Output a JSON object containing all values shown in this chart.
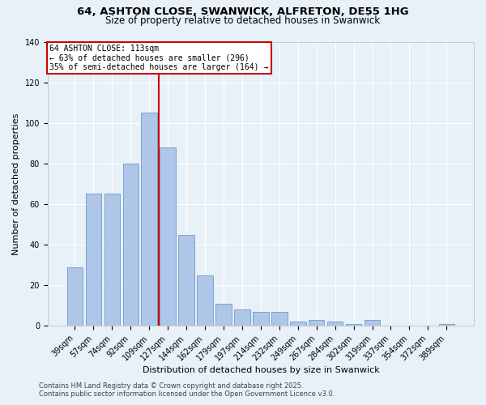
{
  "title": "64, ASHTON CLOSE, SWANWICK, ALFRETON, DE55 1HG",
  "subtitle": "Size of property relative to detached houses in Swanwick",
  "xlabel": "Distribution of detached houses by size in Swanwick",
  "ylabel": "Number of detached properties",
  "categories": [
    "39sqm",
    "57sqm",
    "74sqm",
    "92sqm",
    "109sqm",
    "127sqm",
    "144sqm",
    "162sqm",
    "179sqm",
    "197sqm",
    "214sqm",
    "232sqm",
    "249sqm",
    "267sqm",
    "284sqm",
    "302sqm",
    "319sqm",
    "337sqm",
    "354sqm",
    "372sqm",
    "389sqm"
  ],
  "values": [
    29,
    65,
    65,
    80,
    105,
    88,
    45,
    25,
    11,
    8,
    7,
    7,
    2,
    3,
    2,
    1,
    3,
    0,
    0,
    0,
    1
  ],
  "bar_color": "#aec6e8",
  "bar_edge_color": "#5a8fc0",
  "background_color": "#e8f0f8",
  "grid_color": "#ffffff",
  "red_line_x": 4.5,
  "annotation_line1": "64 ASHTON CLOSE: 113sqm",
  "annotation_line2": "← 63% of detached houses are smaller (296)",
  "annotation_line3": "35% of semi-detached houses are larger (164) →",
  "annotation_box_color": "#ffffff",
  "annotation_box_edge": "#cc0000",
  "red_line_color": "#cc0000",
  "ylim": [
    0,
    140
  ],
  "yticks": [
    0,
    20,
    40,
    60,
    80,
    100,
    120,
    140
  ],
  "footer1": "Contains HM Land Registry data © Crown copyright and database right 2025.",
  "footer2": "Contains public sector information licensed under the Open Government Licence v3.0.",
  "title_fontsize": 9.5,
  "subtitle_fontsize": 8.5,
  "axis_label_fontsize": 8,
  "tick_fontsize": 7,
  "annotation_fontsize": 7,
  "footer_fontsize": 6
}
